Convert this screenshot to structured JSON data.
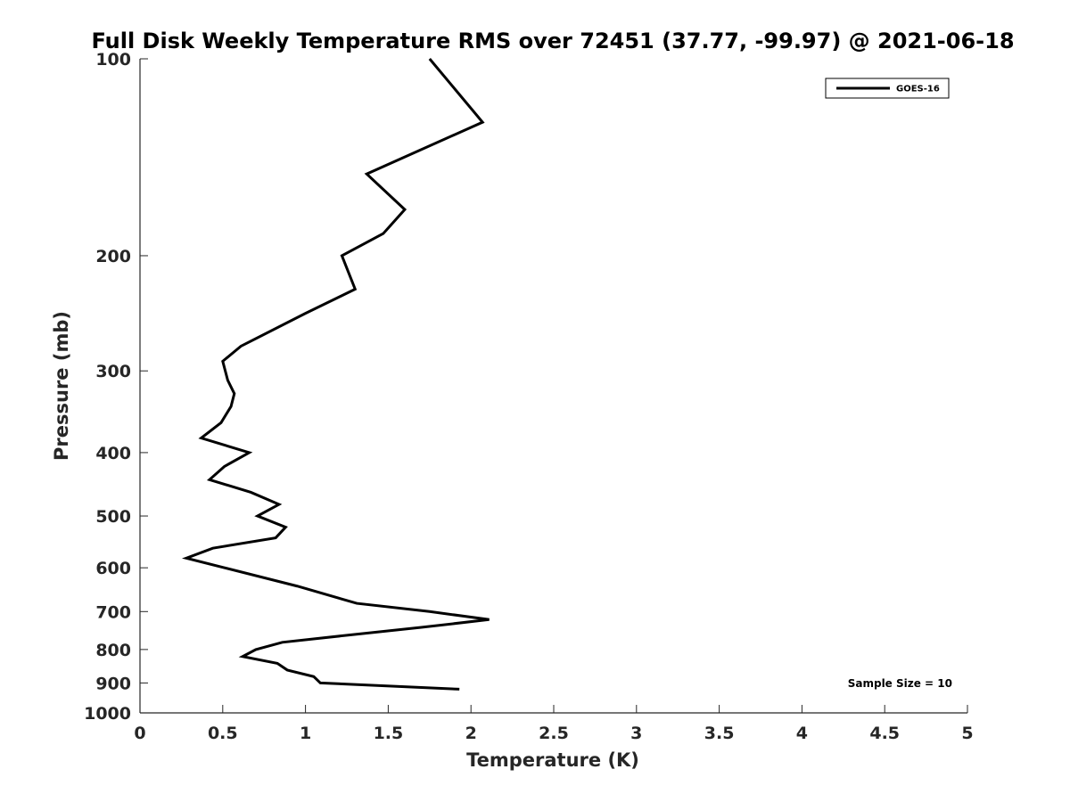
{
  "chart_data": {
    "type": "line",
    "title": "Full Disk Weekly Temperature RMS over 72451 (37.77, -99.97) @ 2021-06-18",
    "xlabel": "Temperature (K)",
    "ylabel": "Pressure (mb)",
    "xlim": [
      0,
      5
    ],
    "ylim": [
      1000,
      100
    ],
    "yscale": "log",
    "y_reversed": true,
    "grid": false,
    "legend_position": "top-right",
    "x_ticks": [
      "0",
      "0.5",
      "1",
      "1.5",
      "2",
      "2.5",
      "3",
      "3.5",
      "4",
      "4.5",
      "5"
    ],
    "x_tick_values": [
      0,
      0.5,
      1,
      1.5,
      2,
      2.5,
      3,
      3.5,
      4,
      4.5,
      5
    ],
    "y_ticks": [
      "100",
      "200",
      "300",
      "400",
      "500",
      "600",
      "700",
      "800",
      "900",
      "1000"
    ],
    "y_tick_values": [
      100,
      200,
      300,
      400,
      500,
      600,
      700,
      800,
      900,
      1000
    ],
    "annotation": "Sample Size = 10",
    "series": [
      {
        "name": "GOES-16",
        "color": "#000000",
        "points": [
          {
            "x": 1.75,
            "y": 100
          },
          {
            "x": 2.07,
            "y": 125
          },
          {
            "x": 1.37,
            "y": 150
          },
          {
            "x": 1.6,
            "y": 170
          },
          {
            "x": 1.47,
            "y": 185
          },
          {
            "x": 1.22,
            "y": 200
          },
          {
            "x": 1.3,
            "y": 225
          },
          {
            "x": 1.0,
            "y": 245
          },
          {
            "x": 0.61,
            "y": 275
          },
          {
            "x": 0.5,
            "y": 290
          },
          {
            "x": 0.53,
            "y": 310
          },
          {
            "x": 0.57,
            "y": 325
          },
          {
            "x": 0.55,
            "y": 340
          },
          {
            "x": 0.49,
            "y": 360
          },
          {
            "x": 0.37,
            "y": 380
          },
          {
            "x": 0.66,
            "y": 400
          },
          {
            "x": 0.51,
            "y": 420
          },
          {
            "x": 0.42,
            "y": 440
          },
          {
            "x": 0.67,
            "y": 460
          },
          {
            "x": 0.84,
            "y": 480
          },
          {
            "x": 0.71,
            "y": 500
          },
          {
            "x": 0.88,
            "y": 520
          },
          {
            "x": 0.82,
            "y": 540
          },
          {
            "x": 0.44,
            "y": 560
          },
          {
            "x": 0.28,
            "y": 580
          },
          {
            "x": 0.95,
            "y": 640
          },
          {
            "x": 1.31,
            "y": 680
          },
          {
            "x": 1.75,
            "y": 700
          },
          {
            "x": 2.11,
            "y": 720
          },
          {
            "x": 1.7,
            "y": 740
          },
          {
            "x": 1.27,
            "y": 760
          },
          {
            "x": 0.86,
            "y": 780
          },
          {
            "x": 0.7,
            "y": 800
          },
          {
            "x": 0.62,
            "y": 820
          },
          {
            "x": 0.83,
            "y": 840
          },
          {
            "x": 0.89,
            "y": 860
          },
          {
            "x": 1.05,
            "y": 880
          },
          {
            "x": 1.09,
            "y": 900
          },
          {
            "x": 1.93,
            "y": 920
          }
        ]
      }
    ]
  }
}
